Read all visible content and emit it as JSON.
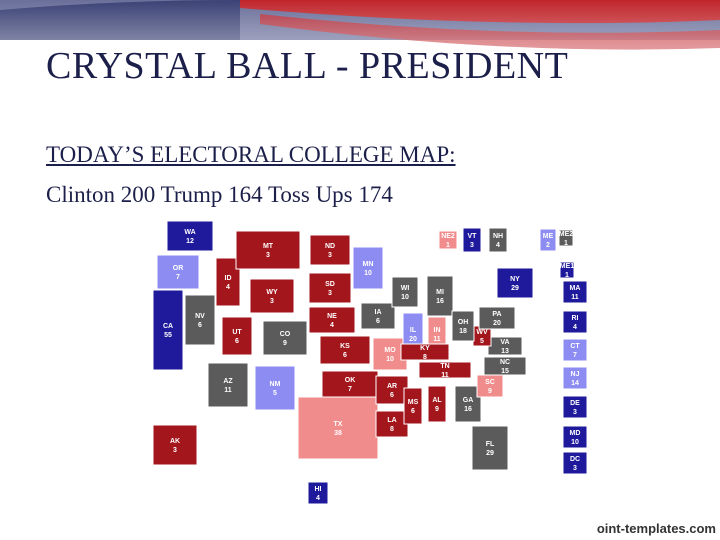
{
  "title": "CRYSTAL BALL - PRESIDENT",
  "heading": "TODAY’S ELECTORAL COLLEGE MAP:",
  "subheading": "Clinton 200 Trump 164 Toss Ups 174",
  "footer": "oint-templates.com",
  "states": [
    {
      "name": "WA",
      "votes": 12,
      "color": "#1f1a9c"
    },
    {
      "name": "OR",
      "votes": 7,
      "color": "#8c8cf2"
    },
    {
      "name": "CA",
      "votes": 55,
      "color": "#1f1a9c"
    },
    {
      "name": "NV",
      "votes": 6,
      "color": "#5b5b5b"
    },
    {
      "name": "ID",
      "votes": 4,
      "color": "#a3161c"
    },
    {
      "name": "MT",
      "votes": 3,
      "color": "#a3161c"
    },
    {
      "name": "WY",
      "votes": 3,
      "color": "#a3161c"
    },
    {
      "name": "UT",
      "votes": 6,
      "color": "#a3161c"
    },
    {
      "name": "CO",
      "votes": 9,
      "color": "#5b5b5b"
    },
    {
      "name": "AZ",
      "votes": 11,
      "color": "#5b5b5b"
    },
    {
      "name": "NM",
      "votes": 5,
      "color": "#8c8cf2"
    },
    {
      "name": "ND",
      "votes": 3,
      "color": "#a3161c"
    },
    {
      "name": "SD",
      "votes": 3,
      "color": "#a3161c"
    },
    {
      "name": "NE",
      "votes": 4,
      "color": "#a3161c"
    },
    {
      "name": "KS",
      "votes": 6,
      "color": "#a3161c"
    },
    {
      "name": "OK",
      "votes": 7,
      "color": "#a3161c"
    },
    {
      "name": "TX",
      "votes": 38,
      "color": "#f08c8c"
    },
    {
      "name": "MN",
      "votes": 10,
      "color": "#8c8cf2"
    },
    {
      "name": "IA",
      "votes": 6,
      "color": "#5b5b5b"
    },
    {
      "name": "MO",
      "votes": 10,
      "color": "#f08c8c"
    },
    {
      "name": "AR",
      "votes": 6,
      "color": "#a3161c"
    },
    {
      "name": "LA",
      "votes": 8,
      "color": "#a3161c"
    },
    {
      "name": "WI",
      "votes": 10,
      "color": "#5b5b5b"
    },
    {
      "name": "IL",
      "votes": 20,
      "color": "#8c8cf2"
    },
    {
      "name": "MI",
      "votes": 16,
      "color": "#5b5b5b"
    },
    {
      "name": "IN",
      "votes": 11,
      "color": "#f08c8c"
    },
    {
      "name": "KY",
      "votes": 8,
      "color": "#a3161c"
    },
    {
      "name": "TN",
      "votes": 11,
      "color": "#a3161c"
    },
    {
      "name": "MS",
      "votes": 6,
      "color": "#a3161c"
    },
    {
      "name": "AL",
      "votes": 9,
      "color": "#a3161c"
    },
    {
      "name": "GA",
      "votes": 16,
      "color": "#5b5b5b"
    },
    {
      "name": "FL",
      "votes": 29,
      "color": "#5b5b5b"
    },
    {
      "name": "SC",
      "votes": 9,
      "color": "#f08c8c"
    },
    {
      "name": "NC",
      "votes": 15,
      "color": "#5b5b5b"
    },
    {
      "name": "VA",
      "votes": 13,
      "color": "#5b5b5b"
    },
    {
      "name": "WV",
      "votes": 5,
      "color": "#a3161c"
    },
    {
      "name": "OH",
      "votes": 18,
      "color": "#5b5b5b"
    },
    {
      "name": "PA",
      "votes": 20,
      "color": "#5b5b5b"
    },
    {
      "name": "NY",
      "votes": 29,
      "color": "#1f1a9c"
    },
    {
      "name": "VT",
      "votes": 3,
      "color": "#1f1a9c"
    },
    {
      "name": "NH",
      "votes": 4,
      "color": "#5b5b5b"
    },
    {
      "name": "NE2",
      "votes": 1,
      "color": "#f08c8c"
    },
    {
      "name": "ME",
      "votes": 2,
      "color": "#8c8cf2"
    },
    {
      "name": "ME2",
      "votes": 1,
      "color": "#5b5b5b"
    },
    {
      "name": "ME1",
      "votes": 1,
      "color": "#1f1a9c"
    },
    {
      "name": "MA",
      "votes": 11,
      "color": "#1f1a9c"
    },
    {
      "name": "RI",
      "votes": 4,
      "color": "#1f1a9c"
    },
    {
      "name": "CT",
      "votes": 7,
      "color": "#8c8cf2"
    },
    {
      "name": "NJ",
      "votes": 14,
      "color": "#8c8cf2"
    },
    {
      "name": "DE",
      "votes": 3,
      "color": "#1f1a9c"
    },
    {
      "name": "MD",
      "votes": 10,
      "color": "#1f1a9c"
    },
    {
      "name": "DC",
      "votes": 3,
      "color": "#1f1a9c"
    },
    {
      "name": "AK",
      "votes": 3,
      "color": "#a3161c"
    },
    {
      "name": "HI",
      "votes": 4,
      "color": "#1f1a9c"
    }
  ]
}
